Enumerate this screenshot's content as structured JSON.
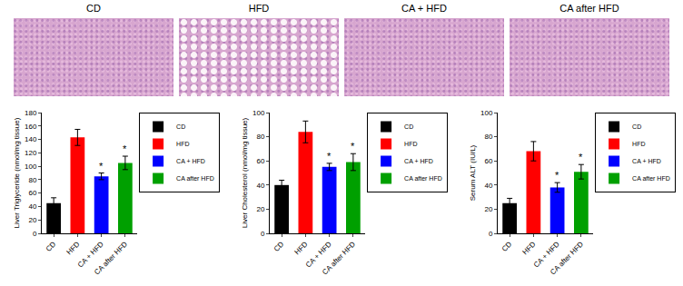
{
  "panel_labels": [
    "CD",
    "HFD",
    "CA + HFD",
    "CA after HFD"
  ],
  "chart_data": [
    {
      "type": "bar",
      "y_label": "Liver Triglyceride (nmol/mg tissue)",
      "categories": [
        "CD",
        "HFD",
        "CA + HFD",
        "CA after HFD"
      ],
      "values": [
        45,
        143,
        85,
        105
      ],
      "errors": [
        8,
        12,
        5,
        10
      ],
      "colors": [
        "#000000",
        "#ff0000",
        "#0000ff",
        "#00a000"
      ],
      "ylim": [
        0,
        180
      ],
      "yticks": [
        0,
        20,
        40,
        60,
        80,
        100,
        120,
        140,
        160,
        180
      ],
      "legend": "upper right",
      "annotations": [
        {
          "category": "CA + HFD",
          "text": "*"
        },
        {
          "category": "CA after HFD",
          "text": "*"
        }
      ]
    },
    {
      "type": "bar",
      "y_label": "Liver Cholesterol (nmol/mg tissue)",
      "categories": [
        "CD",
        "HFD",
        "CA + HFD",
        "CA after HFD"
      ],
      "values": [
        40,
        84,
        55,
        59
      ],
      "errors": [
        4,
        9,
        3,
        7
      ],
      "colors": [
        "#000000",
        "#ff0000",
        "#0000ff",
        "#00a000"
      ],
      "ylim": [
        0,
        100
      ],
      "yticks": [
        0,
        20,
        40,
        60,
        80,
        100
      ],
      "legend": "upper right",
      "annotations": [
        {
          "category": "CA + HFD",
          "text": "*"
        },
        {
          "category": "CA after HFD",
          "text": "*"
        }
      ]
    },
    {
      "type": "bar",
      "y_label": "Serum ALT (IU/L)",
      "categories": [
        "CD",
        "HFD",
        "CA + HFD",
        "CA after HFD"
      ],
      "values": [
        25,
        68,
        38,
        51
      ],
      "errors": [
        4,
        8,
        4,
        6
      ],
      "colors": [
        "#000000",
        "#ff0000",
        "#0000ff",
        "#00a000"
      ],
      "ylim": [
        0,
        100
      ],
      "yticks": [
        0,
        20,
        40,
        60,
        80,
        100
      ],
      "legend": "upper right",
      "annotations": [
        {
          "category": "CA + HFD",
          "text": "*"
        },
        {
          "category": "CA after HFD",
          "text": "*"
        }
      ]
    }
  ]
}
